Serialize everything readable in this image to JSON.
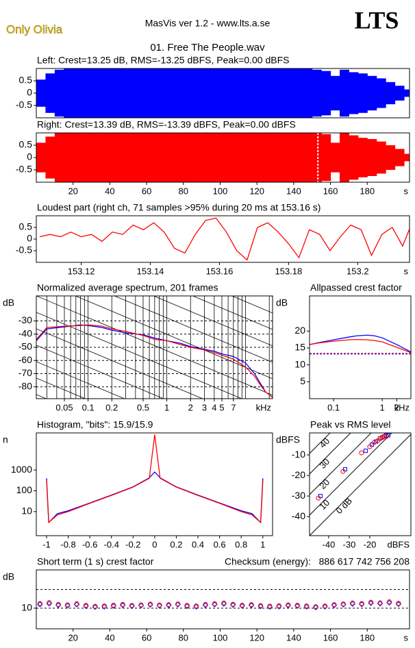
{
  "header": {
    "artist": "Only Olivia",
    "app": "MasVis ver 1.2 - www.lts.a.se",
    "logo": "LTS",
    "file": "01. Free The People.wav"
  },
  "chart_data": [
    {
      "type": "waveform",
      "title": "Left: Crest=13.25 dB, RMS=-13.25 dBFS, Peak=0.00 dBFS",
      "xlim": [
        0,
        203
      ],
      "ylim": [
        -1,
        1
      ],
      "yticks": [
        0.5,
        0,
        -0.5
      ],
      "x": [
        0,
        5,
        10,
        15,
        20,
        25,
        30,
        35,
        40,
        45,
        50,
        55,
        60,
        65,
        70,
        75,
        80,
        85,
        90,
        95,
        100,
        105,
        110,
        115,
        120,
        125,
        130,
        135,
        140,
        145,
        150,
        155,
        160,
        165,
        170,
        175,
        180,
        185,
        190,
        195,
        200
      ],
      "series": [
        {
          "color": "#0000ff",
          "values": [
            0.55,
            0.8,
            0.95,
            1,
            1,
            1,
            1,
            1,
            1,
            1,
            1,
            1,
            1,
            1,
            1,
            1,
            1,
            1,
            1,
            1,
            1,
            1,
            1,
            1,
            1,
            1,
            1,
            1,
            1,
            1,
            0.95,
            0.9,
            0.7,
            0.95,
            0.85,
            0.8,
            0.7,
            0.6,
            0.45,
            0.3,
            0.15
          ]
        }
      ]
    },
    {
      "type": "waveform",
      "title": "Right: Crest=13.39 dB, RMS=-13.39 dBFS, Peak=0.00 dBFS",
      "xlim": [
        0,
        203
      ],
      "ylim": [
        -1,
        1
      ],
      "yticks": [
        0.5,
        0,
        -0.5
      ],
      "xticks": [
        20,
        40,
        60,
        80,
        100,
        120,
        140,
        160,
        180
      ],
      "xlabel": "s",
      "marker": 153.16,
      "x": [
        0,
        5,
        10,
        15,
        20,
        25,
        30,
        35,
        40,
        45,
        50,
        55,
        60,
        65,
        70,
        75,
        80,
        85,
        90,
        95,
        100,
        105,
        110,
        115,
        120,
        125,
        130,
        135,
        140,
        145,
        150,
        155,
        160,
        165,
        170,
        175,
        180,
        185,
        190,
        195,
        200
      ],
      "series": [
        {
          "color": "#ff0000",
          "values": [
            0.6,
            0.85,
            1,
            1,
            1,
            1,
            1,
            1,
            1,
            1,
            1,
            1,
            1,
            1,
            1,
            1,
            1,
            1,
            1,
            1,
            1,
            1,
            1,
            1,
            1,
            1,
            1,
            1,
            1,
            1,
            1,
            0.95,
            0.6,
            1,
            0.9,
            0.8,
            0.75,
            0.65,
            0.5,
            0.35,
            0.15
          ]
        }
      ]
    },
    {
      "type": "line",
      "title": "Loudest part (right ch, 71 samples >95% during 20 ms at 153.16 s)",
      "xlim": [
        153.107,
        153.215
      ],
      "ylim": [
        -1,
        1
      ],
      "yticks": [
        0.5,
        0,
        -0.5
      ],
      "xticks": [
        153.12,
        153.14,
        153.16,
        153.18,
        153.2
      ],
      "xlabel": "s",
      "x": [
        153.108,
        153.111,
        153.114,
        153.117,
        153.12,
        153.123,
        153.126,
        153.129,
        153.132,
        153.135,
        153.138,
        153.141,
        153.144,
        153.147,
        153.15,
        153.153,
        153.156,
        153.159,
        153.162,
        153.165,
        153.168,
        153.171,
        153.174,
        153.177,
        153.18,
        153.183,
        153.186,
        153.189,
        153.192,
        153.195,
        153.198,
        153.201,
        153.204,
        153.207,
        153.21,
        153.213,
        153.216
      ],
      "series": [
        {
          "color": "#ff0000",
          "values": [
            0.1,
            0.2,
            0.1,
            0.3,
            0.1,
            0.2,
            -0.1,
            0.3,
            0.2,
            0.6,
            0.4,
            0.7,
            0.3,
            -0.4,
            -0.6,
            0.2,
            0.8,
            0.9,
            0.3,
            -0.5,
            -0.9,
            0.5,
            0.7,
            0.3,
            -0.2,
            -0.8,
            0.4,
            0.2,
            -0.5,
            0.1,
            0.6,
            0.4,
            -0.7,
            0.2,
            0.5,
            -0.3,
            0.8
          ]
        }
      ]
    },
    {
      "type": "line",
      "title": "Normalized average spectrum, 201 frames",
      "xlog": true,
      "grid": true,
      "guides": true,
      "xlim": [
        0.022,
        22
      ],
      "ylim": [
        -89,
        -11
      ],
      "yticks": [
        -30,
        -40,
        -50,
        -60,
        -70,
        -80
      ],
      "xticks": [
        0.05,
        0.1,
        0.2,
        0.5,
        1,
        2,
        3,
        4,
        5,
        7
      ],
      "xlabel": "kHz",
      "ylabel": "dB",
      "x": [
        0.022,
        0.03,
        0.05,
        0.08,
        0.1,
        0.15,
        0.2,
        0.3,
        0.5,
        0.7,
        1,
        1.5,
        2,
        3,
        4,
        5,
        7,
        10,
        13,
        16,
        18,
        20,
        22
      ],
      "series": [
        {
          "color": "#0000ff",
          "values": [
            -45,
            -36,
            -34.5,
            -33,
            -33.5,
            -35,
            -37,
            -39,
            -40.5,
            -43,
            -45,
            -47,
            -49.5,
            -51.5,
            -53,
            -55,
            -57,
            -62,
            -70,
            -79,
            -84,
            -86,
            -88
          ]
        },
        {
          "color": "#ff0000",
          "values": [
            -44,
            -35,
            -34,
            -33.5,
            -33,
            -34,
            -36,
            -38,
            -41,
            -44,
            -45,
            -48,
            -50,
            -52,
            -54,
            -56,
            -59,
            -65,
            -72,
            -80,
            -84,
            -86,
            -88
          ]
        }
      ]
    },
    {
      "type": "line",
      "title": "Allpassed crest factor",
      "xlog": true,
      "xlim": [
        0.032,
        3.9
      ],
      "ylim": [
        0,
        30.4
      ],
      "yticks": [
        20,
        15,
        10,
        5
      ],
      "xticks": [
        0.1,
        1,
        2
      ],
      "xlabel": "kHz",
      "ylabel": "dB",
      "crest_reference": 13.3,
      "reference_color": "#800080",
      "x": [
        0.032,
        0.05,
        0.1,
        0.2,
        0.3,
        0.5,
        0.7,
        1,
        2,
        3.9
      ],
      "series": [
        {
          "color": "#0000ff",
          "values": [
            16,
            16.6,
            17.4,
            18.2,
            18.6,
            18.8,
            18.6,
            18,
            16,
            13.8
          ]
        },
        {
          "color": "#ff0000",
          "values": [
            16,
            16.5,
            17,
            17.4,
            17.5,
            17.4,
            17.2,
            16.8,
            15.2,
            13.6
          ]
        }
      ]
    },
    {
      "type": "line",
      "title": "Histogram, \"bits\": 15.9/15.9",
      "ylog": true,
      "xlim": [
        -1.095,
        1.09
      ],
      "ylim": [
        0.7,
        60000
      ],
      "yticks": [
        1000,
        100,
        10
      ],
      "xticks": [
        -1,
        -0.8,
        -0.6,
        -0.4,
        -0.2,
        0,
        0.2,
        0.4,
        0.6,
        0.8,
        1
      ],
      "ylabel": "n",
      "x": [
        -1.0,
        -0.98,
        -0.9,
        -0.8,
        -0.6,
        -0.4,
        -0.2,
        -0.05,
        0,
        0.05,
        0.2,
        0.4,
        0.6,
        0.8,
        0.9,
        0.98,
        1.0
      ],
      "series": [
        {
          "color": "#0000ff",
          "values": [
            400,
            3,
            8,
            11,
            26,
            62,
            155,
            420,
            800,
            420,
            155,
            62,
            26,
            11,
            8,
            3,
            400
          ]
        },
        {
          "color": "#ff0000",
          "values": [
            300,
            3,
            7,
            10,
            25,
            60,
            150,
            400,
            50000,
            400,
            150,
            60,
            25,
            10,
            7,
            3,
            300
          ]
        }
      ]
    },
    {
      "type": "scatter",
      "title": "Peak vs RMS level",
      "xlim": [
        -49.3,
        0
      ],
      "ylim": [
        -49.3,
        0.7
      ],
      "yticks": [
        -10,
        -20,
        -30,
        -40
      ],
      "xticks": [
        -40,
        -30,
        -20
      ],
      "xlabel": "dBFS",
      "ylabel": "dBFS",
      "crest_lines": [
        {
          "value": 40,
          "label": "40"
        },
        {
          "value": 30,
          "label": "30"
        },
        {
          "value": 20,
          "label": "20"
        },
        {
          "value": 10,
          "label": "10"
        },
        {
          "value": 0,
          "label": "0 dB"
        }
      ],
      "series": [
        {
          "color": "#0000ff",
          "marker": "square",
          "x": [
            -44,
            -32,
            -22,
            -19,
            -17,
            -15,
            -14,
            -13,
            -12,
            -11
          ],
          "values": [
            -30,
            -17,
            -8,
            -5,
            -3.5,
            -2,
            -1.5,
            -1,
            -0.5,
            -0.5
          ]
        },
        {
          "color": "#ff0000",
          "marker": "circle",
          "x": [
            -45,
            -33,
            -24,
            -20,
            -18,
            -16,
            -15,
            -14,
            -13,
            -12
          ],
          "values": [
            -31,
            -18,
            -9,
            -6,
            -4,
            -3,
            -2,
            -1.5,
            -1,
            -1
          ]
        }
      ]
    },
    {
      "type": "scatter",
      "title": "Short term (1 s) crest factor",
      "annotation": "Checksum (energy):   886 617 742 756 208",
      "xlim": [
        0,
        203
      ],
      "ylim": [
        -1,
        30.4
      ],
      "yticks": [
        10
      ],
      "grid_lines": [
        10,
        20
      ],
      "xticks": [
        20,
        40,
        60,
        80,
        100,
        120,
        140,
        160,
        180
      ],
      "xlabel": "s",
      "ylabel": "dB",
      "series": [
        {
          "color": "#0000ff",
          "marker": "diamond",
          "x": [
            2,
            7,
            12,
            17,
            22,
            27,
            32,
            37,
            42,
            47,
            52,
            57,
            62,
            67,
            72,
            77,
            82,
            87,
            92,
            97,
            102,
            107,
            112,
            117,
            122,
            127,
            132,
            137,
            142,
            147,
            152,
            157,
            162,
            167,
            172,
            177,
            182,
            187,
            192,
            197
          ],
          "values": [
            12,
            12.4,
            11.6,
            11.3,
            11.9,
            11.1,
            10.6,
            10.8,
            11.2,
            11.6,
            11.1,
            11.4,
            11.8,
            11.3,
            11.5,
            11.9,
            11.1,
            10.8,
            11.6,
            12,
            12.3,
            11.7,
            11.2,
            11.5,
            11,
            10.7,
            10.9,
            11.4,
            11.2,
            10.8,
            10.4,
            10.8,
            11.5,
            11.9,
            12.3,
            12.1,
            12.7,
            12.4,
            12.9,
            12.2
          ]
        },
        {
          "color": "#ff0000",
          "marker": "circle",
          "x": [
            2,
            7,
            12,
            17,
            22,
            27,
            32,
            37,
            42,
            47,
            52,
            57,
            62,
            67,
            72,
            77,
            82,
            87,
            92,
            97,
            102,
            107,
            112,
            117,
            122,
            127,
            132,
            137,
            142,
            147,
            152,
            157,
            162,
            167,
            172,
            177,
            182,
            187,
            192,
            197
          ],
          "values": [
            12.5,
            13,
            12,
            11.8,
            12.4,
            11.5,
            11,
            11.2,
            11.6,
            12,
            11.5,
            11.8,
            12.2,
            11.7,
            11.9,
            12.3,
            11.5,
            11.2,
            12,
            12.4,
            12.8,
            12.1,
            11.6,
            11.9,
            11.4,
            11.1,
            11.3,
            11.8,
            11.6,
            11.2,
            10.8,
            11.2,
            11.9,
            12.3,
            12.8,
            12.5,
            13.2,
            12.9,
            13.4,
            12.6
          ]
        }
      ]
    }
  ]
}
